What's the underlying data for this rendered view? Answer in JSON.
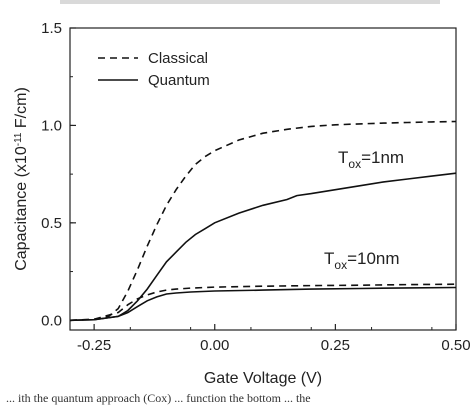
{
  "chart_data": {
    "type": "line",
    "xlabel": "Gate Voltage (V)",
    "ylabel": "Capacitance (x10",
    "ylabel_exp": "-11",
    "ylabel_tail": " F/cm)",
    "xlim": [
      -0.3,
      0.5
    ],
    "ylim": [
      -0.05,
      1.5
    ],
    "xticks": [
      -0.25,
      0.0,
      0.25,
      0.5
    ],
    "xtick_labels": [
      "-0.25",
      "0.00",
      "0.25",
      "0.50"
    ],
    "yticks": [
      0.0,
      0.5,
      1.0,
      1.5
    ],
    "ytick_labels": [
      "0.0",
      "0.5",
      "1.0",
      "1.5"
    ],
    "grid": false,
    "legend_placement": "top-left",
    "legend": [
      {
        "label": "Classical",
        "style": "dashed"
      },
      {
        "label": "Quantum",
        "style": "solid"
      }
    ],
    "annotations": [
      {
        "prefix": "T",
        "sub": "ox",
        "suffix": "=1nm"
      },
      {
        "prefix": "T",
        "sub": "ox",
        "suffix": "=10nm"
      }
    ],
    "series": [
      {
        "style": "dashed",
        "curve": "Tox=1nm",
        "x": [
          -0.3,
          -0.25,
          -0.22,
          -0.2,
          -0.18,
          -0.16,
          -0.14,
          -0.12,
          -0.1,
          -0.08,
          -0.06,
          -0.04,
          -0.02,
          0.0,
          0.05,
          0.1,
          0.15,
          0.2,
          0.25,
          0.3,
          0.35,
          0.4,
          0.45,
          0.5
        ],
        "y": [
          0.0,
          0.005,
          0.02,
          0.06,
          0.15,
          0.26,
          0.38,
          0.49,
          0.59,
          0.67,
          0.74,
          0.8,
          0.84,
          0.87,
          0.925,
          0.96,
          0.98,
          0.995,
          1.003,
          1.008,
          1.012,
          1.015,
          1.018,
          1.02
        ]
      },
      {
        "style": "solid",
        "curve": "Tox=1nm",
        "x": [
          -0.3,
          -0.25,
          -0.2,
          -0.18,
          -0.16,
          -0.14,
          -0.12,
          -0.1,
          -0.08,
          -0.06,
          -0.04,
          -0.02,
          0.0,
          0.05,
          0.1,
          0.15,
          0.17,
          0.2,
          0.25,
          0.3,
          0.35,
          0.4,
          0.45,
          0.5
        ],
        "y": [
          0.0,
          0.003,
          0.02,
          0.05,
          0.1,
          0.16,
          0.23,
          0.3,
          0.35,
          0.4,
          0.44,
          0.47,
          0.5,
          0.55,
          0.59,
          0.62,
          0.64,
          0.65,
          0.67,
          0.69,
          0.71,
          0.725,
          0.74,
          0.755
        ]
      },
      {
        "style": "dashed",
        "curve": "Tox=10nm",
        "x": [
          -0.3,
          -0.25,
          -0.2,
          -0.18,
          -0.16,
          -0.14,
          -0.12,
          -0.1,
          -0.08,
          -0.05,
          0.0,
          0.1,
          0.2,
          0.3,
          0.4,
          0.5
        ],
        "y": [
          0.0,
          0.005,
          0.04,
          0.08,
          0.11,
          0.13,
          0.145,
          0.155,
          0.16,
          0.165,
          0.17,
          0.175,
          0.178,
          0.18,
          0.183,
          0.185
        ]
      },
      {
        "style": "solid",
        "curve": "Tox=10nm",
        "x": [
          -0.3,
          -0.25,
          -0.2,
          -0.18,
          -0.16,
          -0.14,
          -0.12,
          -0.1,
          -0.08,
          -0.05,
          0.0,
          0.1,
          0.2,
          0.3,
          0.4,
          0.5
        ],
        "y": [
          0.0,
          0.003,
          0.02,
          0.04,
          0.07,
          0.1,
          0.12,
          0.135,
          0.14,
          0.145,
          0.15,
          0.155,
          0.16,
          0.163,
          0.166,
          0.168
        ]
      }
    ]
  },
  "caption": "... ith the quantum approach (Cox) ... function the bottom ... the"
}
